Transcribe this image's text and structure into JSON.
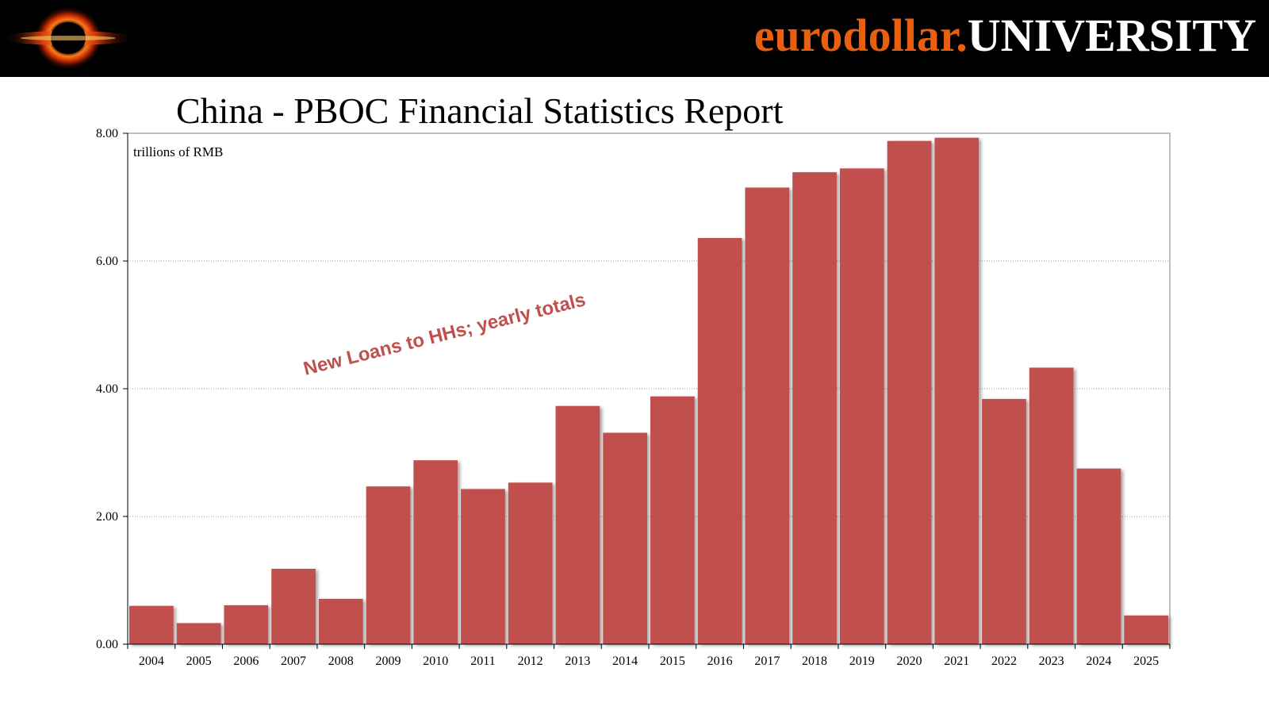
{
  "header": {
    "brand_part1": "eurodollar.",
    "brand_part2": "UNIVERSITY",
    "logo_icon": "black-hole-icon",
    "brand_color": "#e8600f"
  },
  "chart_data": {
    "type": "bar",
    "title": "China - PBOC Financial Statistics Report",
    "unit_label": "trillions of RMB",
    "annotation": "New Loans to HHs; yearly totals",
    "categories": [
      "2004",
      "2005",
      "2006",
      "2007",
      "2008",
      "2009",
      "2010",
      "2011",
      "2012",
      "2013",
      "2014",
      "2015",
      "2016",
      "2017",
      "2018",
      "2019",
      "2020",
      "2021",
      "2022",
      "2023",
      "2024",
      "2025"
    ],
    "series": [
      {
        "name": "New Loans to HHs; yearly totals",
        "color": "#c0504d",
        "values": [
          0.6,
          0.33,
          0.61,
          1.18,
          0.71,
          2.47,
          2.88,
          2.43,
          2.53,
          3.73,
          3.31,
          3.88,
          6.36,
          7.15,
          7.39,
          7.45,
          7.88,
          7.93,
          3.84,
          4.33,
          2.75,
          0.45
        ]
      }
    ],
    "ylim": [
      0,
      8
    ],
    "yticks": [
      0,
      2,
      4,
      6,
      8
    ],
    "ytick_labels": [
      "0.00",
      "2.00",
      "4.00",
      "6.00",
      "8.00"
    ],
    "xlabel": "",
    "ylabel": "",
    "grid": true
  }
}
